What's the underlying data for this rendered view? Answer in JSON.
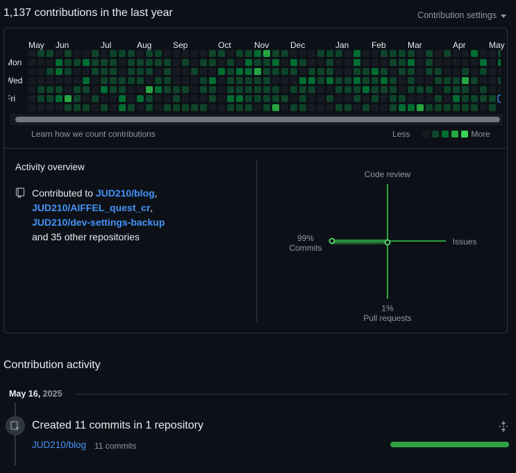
{
  "header": {
    "title": "1,137 contributions in the last year",
    "settings_label": "Contribution settings"
  },
  "calendar": {
    "months": [
      {
        "label": "May",
        "col": 0
      },
      {
        "label": "Jun",
        "col": 3
      },
      {
        "label": "Jul",
        "col": 8
      },
      {
        "label": "Aug",
        "col": 12
      },
      {
        "label": "Sep",
        "col": 16
      },
      {
        "label": "Oct",
        "col": 21
      },
      {
        "label": "Nov",
        "col": 25
      },
      {
        "label": "Dec",
        "col": 29
      },
      {
        "label": "Jan",
        "col": 34
      },
      {
        "label": "Feb",
        "col": 38
      },
      {
        "label": "Mar",
        "col": 42
      },
      {
        "label": "Apr",
        "col": 47
      },
      {
        "label": "May",
        "col": 51
      }
    ],
    "day_labels": [
      {
        "label": "Mon",
        "row": 1
      },
      {
        "label": "Wed",
        "row": 3
      },
      {
        "label": "Fri",
        "row": 5
      }
    ],
    "colors": [
      "#161b22",
      "#0e4429",
      "#006d32",
      "#26a641",
      "#39d353"
    ],
    "today_outline_color": "#4493f8",
    "learn_link": "Learn how we count contributions",
    "legend_less": "Less",
    "legend_more": "More"
  },
  "activity_overview": {
    "title": "Activity overview",
    "contributed_prefix": "Contributed to ",
    "repos": [
      "JUD210/blog",
      "JUD210/AIFFEL_quest_cr",
      "JUD210/dev-settings-backup"
    ],
    "other_text": "and 35 other repositories",
    "axes": {
      "code_review": "Code review",
      "issues": "Issues",
      "commits_pct": "99%",
      "commits_label": "Commits",
      "pr_pct": "1%",
      "pr_label": "Pull requests"
    },
    "percentages": {
      "commits": 99,
      "pull_requests": 1,
      "issues": 0,
      "code_review": 0
    }
  },
  "contribution_activity": {
    "title": "Contribution activity",
    "date_main": "May 16,",
    "date_year": "2025",
    "event_title": "Created 11 commits in 1 repository",
    "repo": "JUD210/blog",
    "commit_count": "11 commits",
    "bar_fraction": 1.0
  }
}
